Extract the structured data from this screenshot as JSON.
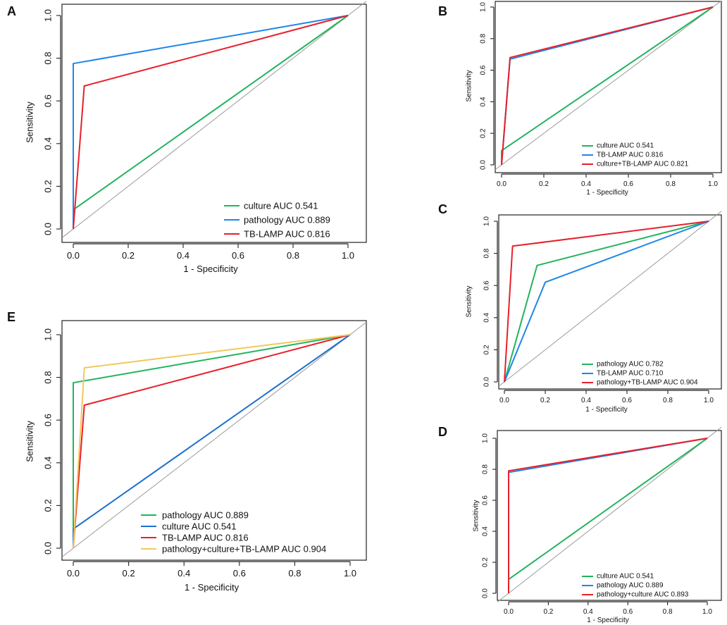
{
  "chart_data": [
    {
      "panel": "A",
      "type": "line",
      "title": "",
      "xlabel": "1 - Specificity",
      "ylabel": "Sensitivity",
      "xlim": [
        0,
        1
      ],
      "ylim": [
        0,
        1
      ],
      "ticks": [
        0.0,
        0.2,
        0.4,
        0.6,
        0.8,
        1.0
      ],
      "tick_labels": [
        "0.0",
        "0.2",
        "0.4",
        "0.6",
        "0.8",
        "1.0"
      ],
      "reference_line": true,
      "legend_position": "bottom-right",
      "series": [
        {
          "name": "culture AUC 0.541",
          "color": "#22b45c",
          "x": [
            0,
            0,
            1
          ],
          "y": [
            0,
            0.09,
            1
          ]
        },
        {
          "name": "pathology AUC 0.889",
          "color": "#1f86e8",
          "x": [
            0,
            0,
            1
          ],
          "y": [
            0,
            0.775,
            1
          ]
        },
        {
          "name": "TB-LAMP AUC 0.816",
          "color": "#e8202a",
          "x": [
            0,
            0.04,
            1
          ],
          "y": [
            0,
            0.67,
            1
          ]
        }
      ]
    },
    {
      "panel": "B",
      "type": "line",
      "title": "",
      "xlabel": "1 - Specificity",
      "ylabel": "Sensitivity",
      "xlim": [
        0,
        1
      ],
      "ylim": [
        0,
        1
      ],
      "ticks": [
        0.0,
        0.2,
        0.4,
        0.6,
        0.8,
        1.0
      ],
      "tick_labels": [
        "0.0",
        "0.2",
        "0.4",
        "0.6",
        "0.8",
        "1.0"
      ],
      "reference_line": true,
      "legend_position": "bottom-right",
      "series": [
        {
          "name": "culture AUC 0.541",
          "color": "#22b45c",
          "x": [
            0,
            0,
            1
          ],
          "y": [
            0,
            0.09,
            1
          ]
        },
        {
          "name": "TB-LAMP AUC 0.816",
          "color": "#1f86e8",
          "x": [
            0,
            0.04,
            1
          ],
          "y": [
            0,
            0.67,
            1
          ]
        },
        {
          "name": "culture+TB-LAMP AUC 0.821",
          "color": "#e8202a",
          "x": [
            0,
            0.04,
            1
          ],
          "y": [
            0,
            0.68,
            1
          ]
        }
      ]
    },
    {
      "panel": "C",
      "type": "line",
      "title": "",
      "xlabel": "1 - Specificity",
      "ylabel": "Sensitivity",
      "xlim": [
        0,
        1
      ],
      "ylim": [
        0,
        1
      ],
      "ticks": [
        0.0,
        0.2,
        0.4,
        0.6,
        0.8,
        1.0
      ],
      "tick_labels": [
        "0.0",
        "0.2",
        "0.4",
        "0.6",
        "0.8",
        "1.0"
      ],
      "reference_line": true,
      "legend_position": "bottom-right",
      "series": [
        {
          "name": "pathology AUC 0.782",
          "color": "#22b45c",
          "x": [
            0,
            0.16,
            1
          ],
          "y": [
            0,
            0.725,
            1
          ]
        },
        {
          "name": "TB-LAMP AUC 0.710",
          "color": "#1f86e8",
          "x": [
            0,
            0.2,
            1
          ],
          "y": [
            0,
            0.62,
            1
          ]
        },
        {
          "name": "pathology+TB-LAMP AUC 0.904",
          "color": "#e8202a",
          "x": [
            0,
            0.04,
            1
          ],
          "y": [
            0,
            0.845,
            1
          ]
        }
      ]
    },
    {
      "panel": "D",
      "type": "line",
      "title": "",
      "xlabel": "1 - Specificity",
      "ylabel": "Sensitivity",
      "xlim": [
        0,
        1
      ],
      "ylim": [
        0,
        1
      ],
      "ticks": [
        0.0,
        0.2,
        0.4,
        0.6,
        0.8,
        1.0
      ],
      "tick_labels": [
        "0.0",
        "0.2",
        "0.4",
        "0.6",
        "0.8",
        "1.0"
      ],
      "reference_line": true,
      "legend_position": "bottom-right",
      "series": [
        {
          "name": "culture AUC 0.541",
          "color": "#22b45c",
          "x": [
            0,
            0,
            1
          ],
          "y": [
            0,
            0.09,
            1
          ]
        },
        {
          "name": "pathology AUC 0.889",
          "color": "#1f86e8",
          "x": [
            0,
            0,
            1
          ],
          "y": [
            0,
            0.78,
            1
          ]
        },
        {
          "name": "pathology+culture AUC 0.893",
          "color": "#e8202a",
          "x": [
            0,
            0,
            1
          ],
          "y": [
            0,
            0.79,
            1
          ]
        }
      ]
    },
    {
      "panel": "E",
      "type": "line",
      "title": "",
      "xlabel": "1 - Specificity",
      "ylabel": "Sensitivity",
      "xlim": [
        0,
        1
      ],
      "ylim": [
        0,
        1
      ],
      "ticks": [
        0.0,
        0.2,
        0.4,
        0.6,
        0.8,
        1.0
      ],
      "tick_labels": [
        "0.0",
        "0.2",
        "0.4",
        "0.6",
        "0.8",
        "1.0"
      ],
      "reference_line": true,
      "legend_position": "bottom-right",
      "series": [
        {
          "name": "pathology AUC 0.889",
          "color": "#22b45c",
          "x": [
            0,
            0,
            1
          ],
          "y": [
            0,
            0.775,
            1
          ]
        },
        {
          "name": "culture AUC 0.541",
          "color": "#1a6fd0",
          "x": [
            0,
            0,
            1
          ],
          "y": [
            0,
            0.09,
            1
          ]
        },
        {
          "name": "TB-LAMP AUC 0.816",
          "color": "#e8202a",
          "x": [
            0,
            0.04,
            1
          ],
          "y": [
            0,
            0.67,
            1
          ]
        },
        {
          "name": "pathology+culture+TB-LAMP AUC 0.904",
          "color": "#f1c85a",
          "x": [
            0,
            0.04,
            1
          ],
          "y": [
            0,
            0.845,
            1
          ]
        }
      ]
    }
  ]
}
